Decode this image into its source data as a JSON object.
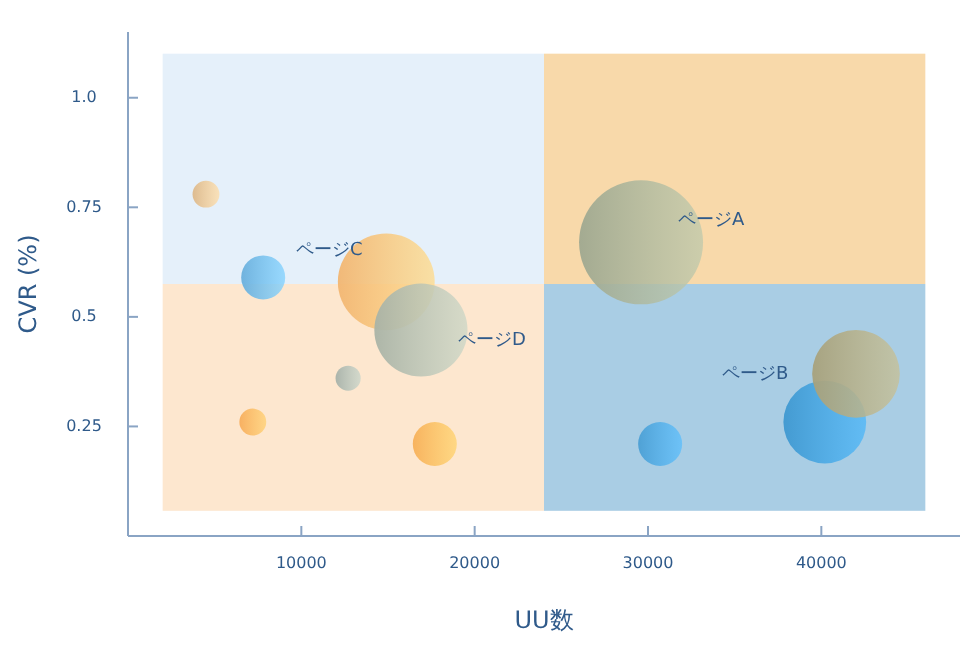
{
  "chart_data": {
    "type": "bubble",
    "xlabel": "UU数",
    "ylabel": "CVR (%)",
    "x": [
      4500,
      7800,
      14900,
      16900,
      12700,
      7200,
      17700,
      29600,
      30700,
      40200,
      42000
    ],
    "values": [
      0.78,
      0.59,
      0.58,
      0.47,
      0.36,
      0.26,
      0.21,
      0.67,
      0.21,
      0.26,
      0.37
    ],
    "sizes": [
      0.047,
      0.126,
      0.61,
      0.565,
      0.041,
      0.047,
      0.126,
      1,
      0.126,
      0.446,
      0.5
    ],
    "colors": [
      "#dcb88a",
      "#6aafdc",
      "#f2b672",
      "#a9b3a6",
      "#a6b1a9",
      "#f7ad5c",
      "#f7b059",
      "#9fa890",
      "#4b9fd4",
      "#3f98d0",
      "#a7a17c"
    ],
    "xlim": [
      0,
      48000
    ],
    "xticks": [
      10000,
      20000,
      30000,
      40000
    ],
    "ylim": [
      0,
      1.15
    ],
    "yticks": [
      0.25,
      0.5,
      0.75,
      {
        "value": 1,
        "label": "1.0"
      }
    ],
    "bands": [
      {
        "axis": "x",
        "from": 2000,
        "to": 24000,
        "color": "#e5f0fa"
      },
      {
        "axis": "x",
        "from": 24000,
        "to": 46000,
        "color": "#f8d9aa"
      },
      {
        "axis": "x",
        "from": 2000,
        "to": 24000,
        "color": "#fde7cf"
      },
      {
        "axis": "x",
        "from": 24000,
        "to": 46000,
        "color": "#a9cde4"
      }
    ],
    "annotations": [
      "ページA",
      "ページB",
      "ページC",
      "ページD"
    ],
    "grid": false
  }
}
